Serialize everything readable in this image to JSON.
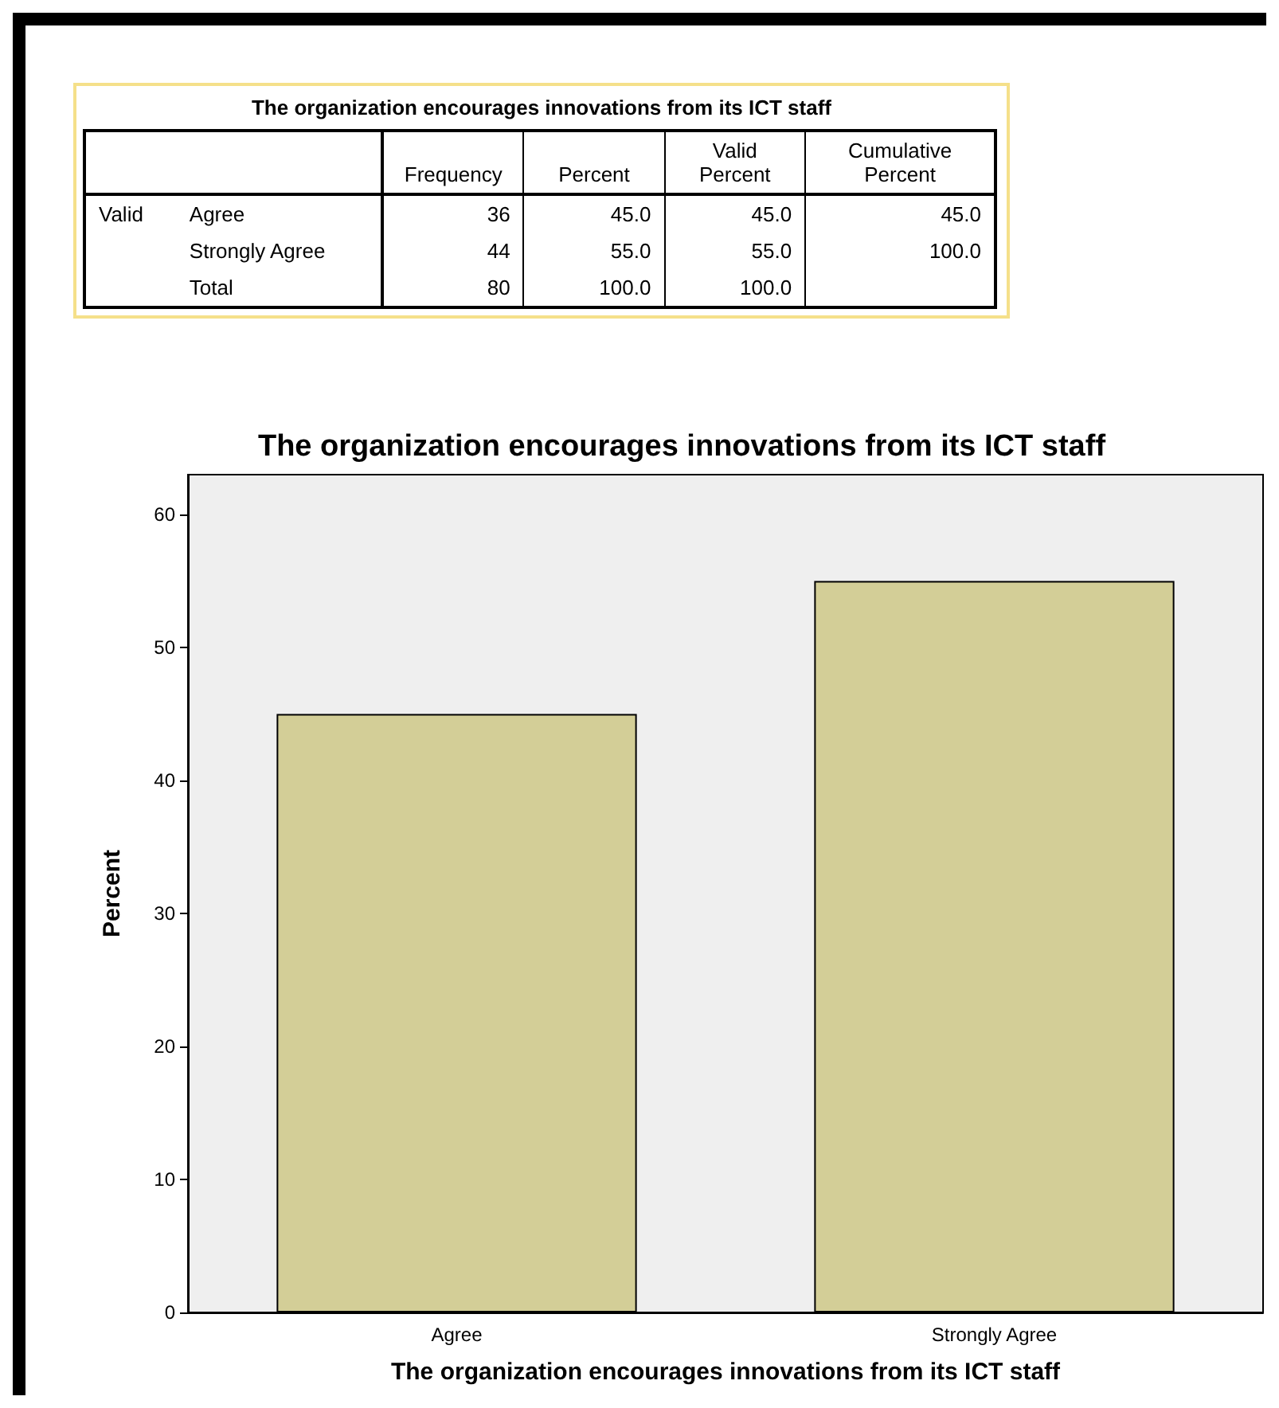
{
  "chart_data": [
    {
      "type": "other",
      "title": "The organization encourages innovations from its ICT staff",
      "categories": [
        "Frequency",
        "Percent",
        "Valid Percent",
        "Cumulative Percent"
      ],
      "y_categories": [
        "Agree",
        "Strongly Agree",
        "Total"
      ],
      "cell_labels": [
        [
          "36",
          "45.0",
          "45.0",
          "45.0"
        ],
        [
          "44",
          "55.0",
          "55.0",
          "100.0"
        ],
        [
          "80",
          "100.0",
          "100.0",
          null
        ]
      ],
      "annotations": [
        "Valid"
      ]
    },
    {
      "type": "bar",
      "title": "The organization encourages innovations from its ICT staff",
      "xlabel": "The organization encourages innovations from its ICT staff",
      "ylabel": "Percent",
      "categories": [
        "Agree",
        "Strongly Agree"
      ],
      "values": [
        45,
        55
      ],
      "color": "#d3ce97",
      "ylim": [
        0,
        63
      ],
      "yticks": [
        0,
        10,
        20,
        30,
        40,
        50,
        60
      ],
      "grid": false
    }
  ]
}
